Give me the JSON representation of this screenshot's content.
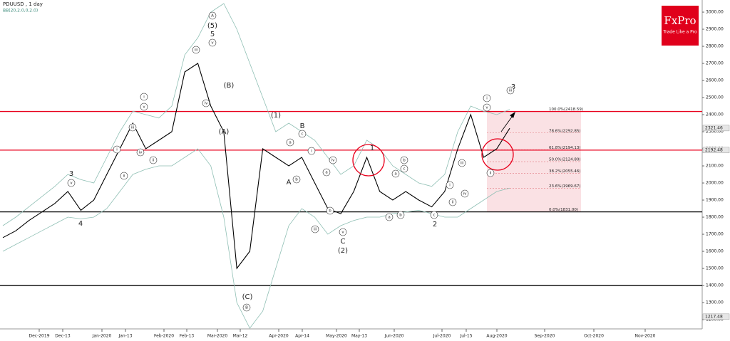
{
  "chart_data": {
    "type": "line",
    "title": "PDUUSD , 1 day",
    "subtitle": "BB(20,2.0,0,2.0)",
    "logo": {
      "brand": "FxPro",
      "tagline": "Trade Like a Pro"
    },
    "series": [
      {
        "name": "Close",
        "color": "#000000",
        "values": [
          1680,
          1720,
          1780,
          1830,
          1880,
          1950,
          1840,
          1900,
          2050,
          2200,
          2350,
          2200,
          2250,
          2300,
          2650,
          2700,
          2450,
          2300,
          1500,
          1600,
          2200,
          2150,
          2100,
          2150,
          2000,
          1850,
          1820,
          1950,
          2150,
          1950,
          1900,
          1950,
          1900,
          1860,
          1950,
          2200,
          2400,
          2150,
          2200,
          2320
        ]
      },
      {
        "name": "BB upper",
        "color": "#8fbfb4",
        "values": [
          1750,
          1800,
          1860,
          1920,
          1980,
          2050,
          2020,
          2000,
          2150,
          2300,
          2420,
          2400,
          2380,
          2450,
          2750,
          2850,
          3000,
          3050,
          2900,
          2700,
          2500,
          2300,
          2350,
          2300,
          2250,
          2150,
          2050,
          2100,
          2250,
          2200,
          2100,
          2050,
          2000,
          1980,
          2050,
          2300,
          2450,
          2420,
          2400,
          2430
        ]
      },
      {
        "name": "BB lower",
        "color": "#8fbfb4",
        "values": [
          1600,
          1640,
          1680,
          1720,
          1760,
          1800,
          1790,
          1800,
          1850,
          1950,
          2050,
          2080,
          2100,
          2100,
          2150,
          2200,
          2100,
          1800,
          1300,
          1150,
          1250,
          1500,
          1750,
          1850,
          1800,
          1700,
          1750,
          1780,
          1800,
          1800,
          1820,
          1830,
          1840,
          1820,
          1800,
          1800,
          1850,
          1900,
          1950,
          1970
        ]
      }
    ],
    "ylim": [
      1146,
      3071
    ],
    "yticks": [
      {
        "value": 1200,
        "label": "1200.00"
      },
      {
        "value": 1300,
        "label": "1300.00"
      },
      {
        "value": 1400,
        "label": "1400.00"
      },
      {
        "value": 1500,
        "label": "1500.00"
      },
      {
        "value": 1600,
        "label": "1600.00"
      },
      {
        "value": 1700,
        "label": "1700.00"
      },
      {
        "value": 1800,
        "label": "1800.00"
      },
      {
        "value": 1900,
        "label": "1900.00"
      },
      {
        "value": 2000,
        "label": "2000.00"
      },
      {
        "value": 2100,
        "label": "2100.00"
      },
      {
        "value": 2200,
        "label": "2200.00"
      },
      {
        "value": 2300,
        "label": "2300.00"
      },
      {
        "value": 2400,
        "label": "2400.00"
      },
      {
        "value": 2500,
        "label": "2500.00"
      },
      {
        "value": 2600,
        "label": "2600.00"
      },
      {
        "value": 2700,
        "label": "2700.00"
      },
      {
        "value": 2800,
        "label": "2800.00"
      },
      {
        "value": 2900,
        "label": "2900.00"
      },
      {
        "value": 3000,
        "label": "3000.00"
      }
    ],
    "xticks": [
      "Dec-2019",
      "Dec-13",
      "Jan-2020",
      "Jan-13",
      "Feb-2020",
      "Feb-13",
      "Mar-2020",
      "Mar-12",
      "Apr-2020",
      "Apr-14",
      "May-2020",
      "May-13",
      "Jun-2020",
      "Jul-2020",
      "Jul-15",
      "Aug-2020",
      "Sep-2020",
      "Oct-2020",
      "Nov-2020"
    ],
    "levels": [
      {
        "value": 2418.59,
        "color": "#e8001c"
      },
      {
        "value": 2192.48,
        "color": "#e8001c"
      },
      {
        "value": 1831,
        "color": "#000000"
      },
      {
        "value": 1400,
        "color": "#000000"
      }
    ],
    "fib": [
      {
        "value": 2418.59,
        "label": "100.0%(2418.59)"
      },
      {
        "value": 2292.85,
        "label": "78.6%(2292.85)"
      },
      {
        "value": 2194.13,
        "label": "61.8%(2194.13)"
      },
      {
        "value": 2124.8,
        "label": "50.0%(2124.80)"
      },
      {
        "value": 2055.46,
        "label": "38.2%(2055.46)"
      },
      {
        "value": 1969.67,
        "label": "23.6%(1969.67)"
      },
      {
        "value": 1831.0,
        "label": "0.0%(1831.00)"
      }
    ],
    "price_tags": [
      {
        "value": 2321.46,
        "label": "2321.46"
      },
      {
        "value": 2192.48,
        "label": "2192.48"
      },
      {
        "value": 1217.48,
        "label": "1217.48"
      }
    ],
    "annotations": [
      "A",
      "(5)",
      "5",
      "v",
      "iii",
      "iv",
      "(B)",
      "(A)",
      "(C)",
      "B",
      "(1)",
      "B",
      "A",
      "C",
      "(2)",
      "1",
      "2",
      "3",
      "4",
      "3",
      "i",
      "v",
      "iii",
      "iv",
      "ii",
      "i",
      "ii",
      "v",
      "i",
      "v",
      "iii",
      "iv",
      "ii",
      "i",
      "ii",
      "iii",
      "a",
      "b",
      "c",
      "i",
      "iii",
      "iv",
      "a",
      "b",
      "v",
      "a",
      "b",
      "a",
      "b",
      "c",
      "c"
    ]
  }
}
